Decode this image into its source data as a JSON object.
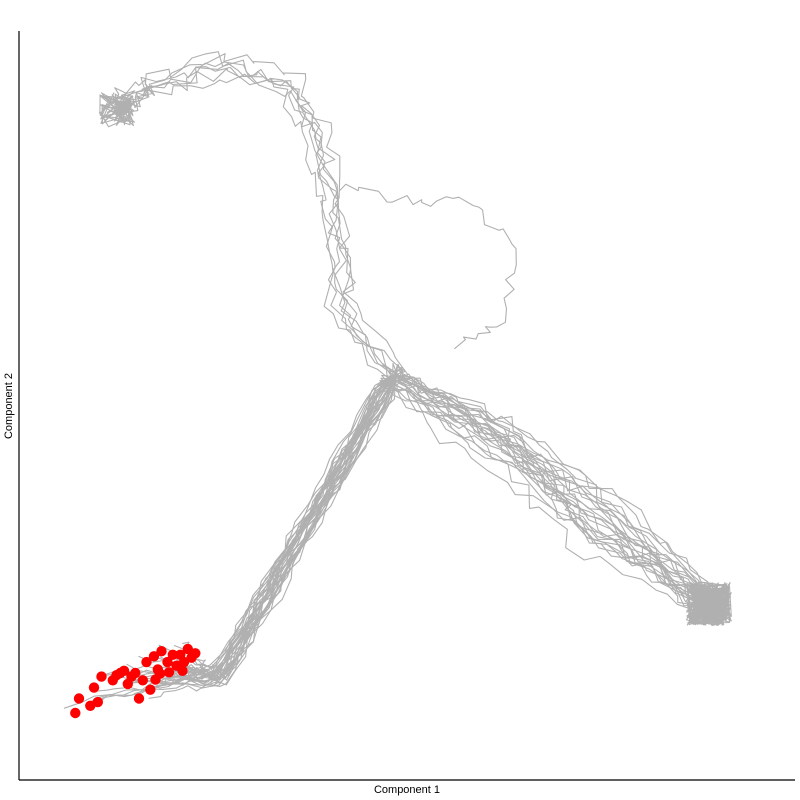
{
  "chart_data": {
    "type": "line",
    "title": "",
    "xlabel": "Component 1",
    "ylabel": "Component 2",
    "xlim": [
      0,
      100
    ],
    "ylim": [
      0,
      100
    ],
    "grid": false,
    "legend": "none",
    "colors": {
      "trajectory": "#b0b0b0",
      "start_point": "#ff0000",
      "axis": "#000000"
    },
    "waypoints": {
      "start": [
        25,
        12
      ],
      "branch": [
        48,
        53
      ],
      "end_top_left": [
        11,
        90
      ],
      "end_right": [
        90,
        22
      ],
      "arch": [
        [
          15,
          93
        ],
        [
          25,
          96
        ],
        [
          34,
          93
        ],
        [
          38,
          85
        ],
        [
          40,
          74
        ],
        [
          41,
          62
        ]
      ],
      "detour": [
        [
          50,
          77
        ],
        [
          58,
          77
        ],
        [
          64,
          70
        ],
        [
          62,
          60
        ],
        [
          56,
          57
        ]
      ]
    },
    "series": [
      {
        "branch": "right",
        "values": []
      },
      {
        "branch": "top",
        "values": []
      }
    ],
    "start_points": [
      [
        5.5,
        7.0
      ],
      [
        6.0,
        9.0
      ],
      [
        7.5,
        8.0
      ],
      [
        8.0,
        10.5
      ],
      [
        9.0,
        12.0
      ],
      [
        10.5,
        11.5
      ],
      [
        11.5,
        12.5
      ],
      [
        12.5,
        11.0
      ],
      [
        13.5,
        12.5
      ],
      [
        14.0,
        9.0
      ],
      [
        14.5,
        11.5
      ],
      [
        15.0,
        14.0
      ],
      [
        16.0,
        14.8
      ],
      [
        16.5,
        13.0
      ],
      [
        17.0,
        15.5
      ],
      [
        17.8,
        14.0
      ],
      [
        18.5,
        15.0
      ],
      [
        19.0,
        13.5
      ],
      [
        19.5,
        15.0
      ],
      [
        20.0,
        14.0
      ],
      [
        20.5,
        15.8
      ],
      [
        21.0,
        14.6
      ],
      [
        21.5,
        15.2
      ],
      [
        15.5,
        10.2
      ],
      [
        13.0,
        12.0
      ],
      [
        12.0,
        12.8
      ],
      [
        11.0,
        12.2
      ],
      [
        8.5,
        8.5
      ],
      [
        16.8,
        12.4
      ],
      [
        18.0,
        12.6
      ],
      [
        19.8,
        12.8
      ],
      [
        16.2,
        11.6
      ]
    ]
  }
}
